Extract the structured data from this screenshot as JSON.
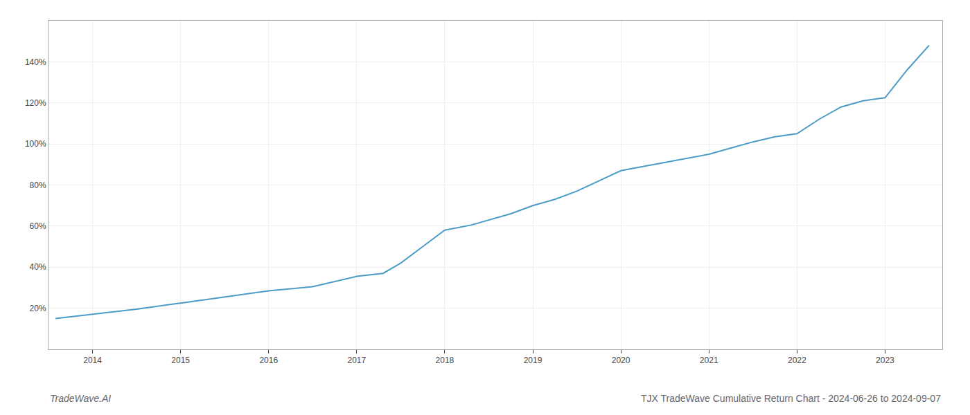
{
  "chart_data": {
    "type": "line",
    "title": "TJX TradeWave Cumulative Return Chart - 2024-06-26 to 2024-09-07",
    "annotations": [
      "TradeWave.AI"
    ],
    "x": [
      2013.58,
      2014.0,
      2014.5,
      2015.0,
      2015.5,
      2016.0,
      2016.5,
      2017.0,
      2017.3,
      2017.5,
      2017.75,
      2018.0,
      2018.3,
      2018.5,
      2018.75,
      2019.0,
      2019.25,
      2019.5,
      2019.75,
      2020.0,
      2020.25,
      2020.5,
      2020.75,
      2021.0,
      2021.25,
      2021.5,
      2021.75,
      2022.0,
      2022.25,
      2022.5,
      2022.75,
      2023.0,
      2023.25,
      2023.5
    ],
    "values": [
      15.0,
      17.0,
      19.5,
      22.5,
      25.5,
      28.5,
      30.5,
      35.5,
      37.0,
      42.0,
      50.0,
      58.0,
      60.5,
      63.0,
      66.0,
      70.0,
      73.0,
      77.0,
      82.0,
      87.0,
      89.0,
      91.0,
      93.0,
      95.0,
      98.0,
      101.0,
      103.5,
      105.0,
      112.0,
      118.0,
      121.0,
      122.5,
      136.0,
      148.0
    ],
    "color": "#4a9cc7",
    "xlim": [
      2013.5,
      2023.65
    ],
    "ylim": [
      0,
      160
    ],
    "xticks": [
      2014,
      2015,
      2016,
      2017,
      2018,
      2019,
      2020,
      2021,
      2022,
      2023
    ],
    "yticks": [
      {
        "value": 20,
        "label": "20%"
      },
      {
        "value": 40,
        "label": "40%"
      },
      {
        "value": 60,
        "label": "60%"
      },
      {
        "value": 80,
        "label": "80%"
      },
      {
        "value": 100,
        "label": "100%"
      },
      {
        "value": 120,
        "label": "120%"
      },
      {
        "value": 140,
        "label": "140%"
      }
    ],
    "grid": true
  }
}
